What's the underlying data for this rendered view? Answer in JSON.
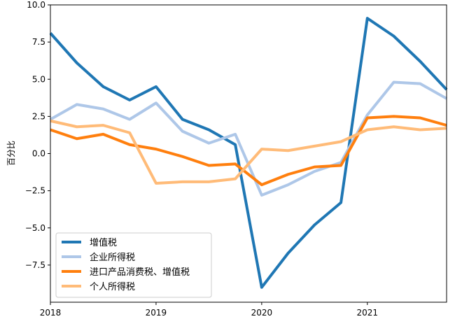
{
  "chart_data": {
    "type": "line",
    "title": "",
    "xlabel": "",
    "ylabel": "百分比",
    "xlim": [
      2018.0,
      2021.75
    ],
    "ylim": [
      -10.0,
      10.0
    ],
    "x": [
      2018.0,
      2018.25,
      2018.5,
      2018.75,
      2019.0,
      2019.25,
      2019.5,
      2019.75,
      2020.0,
      2020.25,
      2020.5,
      2020.75,
      2021.0,
      2021.25,
      2021.5,
      2021.75
    ],
    "xticks": [
      {
        "value": 2018,
        "label": "2018"
      },
      {
        "value": 2019,
        "label": "2019"
      },
      {
        "value": 2020,
        "label": "2020"
      },
      {
        "value": 2021,
        "label": "2021"
      }
    ],
    "yticks": [
      {
        "value": 10.0,
        "label": "10.0"
      },
      {
        "value": 7.5,
        "label": "7.5"
      },
      {
        "value": 5.0,
        "label": "5.0"
      },
      {
        "value": 2.5,
        "label": "2.5"
      },
      {
        "value": 0.0,
        "label": "0.0"
      },
      {
        "value": -2.5,
        "label": "−2.5"
      },
      {
        "value": -5.0,
        "label": "−5.0"
      },
      {
        "value": -7.5,
        "label": "−7.5"
      }
    ],
    "grid": false,
    "legend_position": "lower-left",
    "series": [
      {
        "name": "增值税",
        "color": "#1f77b4",
        "values": [
          8.1,
          6.1,
          4.5,
          3.6,
          4.5,
          2.3,
          1.6,
          0.6,
          -9.0,
          -6.7,
          -4.8,
          -3.3,
          9.1,
          7.9,
          6.2,
          4.3
        ]
      },
      {
        "name": "企业所得税",
        "color": "#aec7e8",
        "values": [
          2.3,
          3.3,
          3.0,
          2.3,
          3.4,
          1.5,
          0.7,
          1.3,
          -2.8,
          -2.1,
          -1.2,
          -0.6,
          2.6,
          4.8,
          4.7,
          3.7
        ]
      },
      {
        "name": "进口产品消费税、增值税",
        "color": "#ff7f0e",
        "values": [
          1.6,
          1.0,
          1.3,
          0.6,
          0.3,
          -0.2,
          -0.8,
          -0.7,
          -2.1,
          -1.4,
          -0.9,
          -0.8,
          2.4,
          2.5,
          2.4,
          1.9
        ]
      },
      {
        "name": "个人所得税",
        "color": "#ffbb78",
        "values": [
          2.2,
          1.8,
          1.9,
          1.4,
          -2.0,
          -1.9,
          -1.9,
          -1.7,
          0.3,
          0.2,
          0.5,
          0.8,
          1.6,
          1.8,
          1.6,
          1.7
        ]
      }
    ]
  }
}
